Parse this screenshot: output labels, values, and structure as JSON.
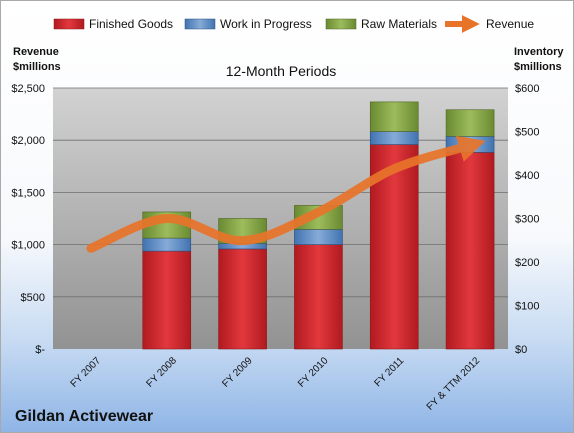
{
  "chart_data": {
    "type": "bar",
    "title": "12-Month Periods",
    "company": "Gildan Activewear",
    "categories": [
      "FY 2007",
      "FY 2008",
      "FY 2009",
      "FY 2010",
      "FY 2011",
      "FY & TTM 2012"
    ],
    "left_axis": {
      "label_line1": "Revenue",
      "label_line2": "$millions",
      "ylim": [
        0,
        2500
      ],
      "ticks": [
        "$-",
        "$500",
        "$1,000",
        "$1,500",
        "$2,000",
        "$2,500"
      ]
    },
    "right_axis": {
      "label_line1": "Inventory",
      "label_line2": "$millions",
      "ylim": [
        0,
        600
      ],
      "ticks": [
        "$0",
        "$100",
        "$200",
        "$300",
        "$400",
        "$500",
        "$600"
      ]
    },
    "grid": true,
    "legend_position": "top",
    "series": [
      {
        "name": "Finished Goods",
        "type": "stacked-bar",
        "axis": "right",
        "color": "#c0262b",
        "values": [
          null,
          225,
          230,
          240,
          470,
          452
        ]
      },
      {
        "name": "Work in Progress",
        "type": "stacked-bar",
        "axis": "right",
        "color": "#4f81bd",
        "values": [
          null,
          30,
          13,
          35,
          30,
          37
        ]
      },
      {
        "name": "Raw Materials",
        "type": "stacked-bar",
        "axis": "right",
        "color": "#77933c",
        "values": [
          null,
          60,
          57,
          55,
          68,
          61
        ]
      },
      {
        "name": "Revenue",
        "type": "line",
        "axis": "left",
        "color": "#e8742a",
        "values": [
          964,
          1250,
          1038,
          1311,
          1726,
          1948
        ]
      }
    ]
  }
}
